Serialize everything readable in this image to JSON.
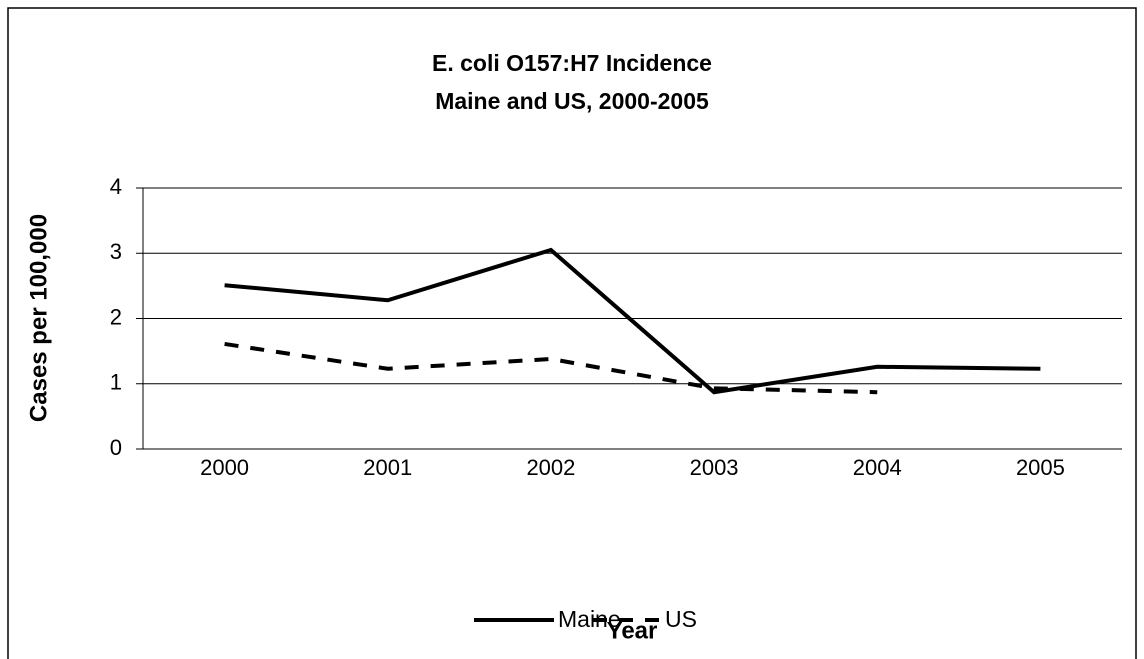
{
  "chart_data": {
    "type": "line",
    "title": "E. coli O157:H7 Incidence",
    "subtitle": "Maine and US, 2000-2005",
    "x_label": "Year",
    "y_label": "Cases per 100,000",
    "categories": [
      "2000",
      "2001",
      "2002",
      "2003",
      "2004",
      "2005"
    ],
    "series": [
      {
        "name": "Maine",
        "color": "#000000",
        "dash": "solid",
        "values": [
          2.51,
          2.28,
          3.05,
          0.87,
          1.26,
          1.23
        ]
      },
      {
        "name": "US",
        "color": "#000000",
        "dash": "dashed",
        "values": [
          1.61,
          1.23,
          1.38,
          0.93,
          0.87,
          null
        ]
      }
    ],
    "ylim": [
      0,
      4
    ],
    "yticks": [
      0,
      1,
      2,
      3,
      4
    ],
    "grid": true,
    "legend": "bottom"
  }
}
